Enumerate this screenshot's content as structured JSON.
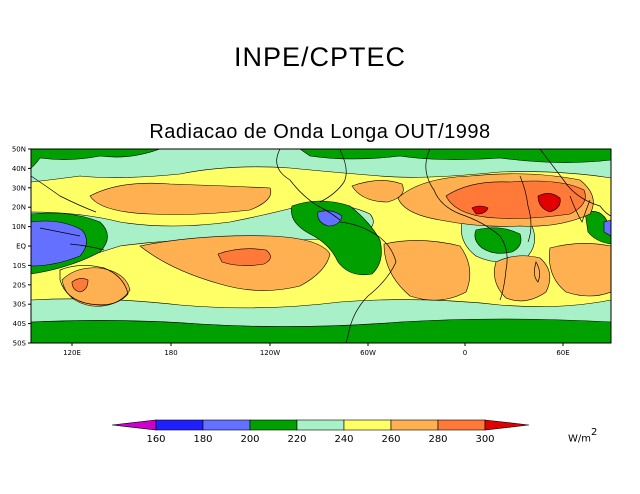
{
  "header": {
    "title": "INPE/CPTEC"
  },
  "map": {
    "title": "Radiacao de Onda Longa OUT/1998",
    "lat_labels": [
      "50N",
      "40N",
      "30N",
      "20N",
      "10N",
      "EQ",
      "10S",
      "20S",
      "30S",
      "40S",
      "50S"
    ],
    "lon_labels": [
      "120E",
      "180",
      "120W",
      "60W",
      "0",
      "60E"
    ],
    "colors": {
      "below160": "#cc00cc",
      "c160_180": "#2020ff",
      "c180_200": "#6470ff",
      "c200_220": "#00a000",
      "c220_240": "#a8f0c8",
      "c240_260": "#ffff66",
      "c260_280": "#ffb050",
      "c280_300": "#ff7a38",
      "above300": "#e00000"
    }
  },
  "legend": {
    "ticks": [
      "160",
      "180",
      "200",
      "220",
      "240",
      "260",
      "280",
      "300"
    ],
    "unit": "W/m",
    "unit_exp": "2"
  }
}
